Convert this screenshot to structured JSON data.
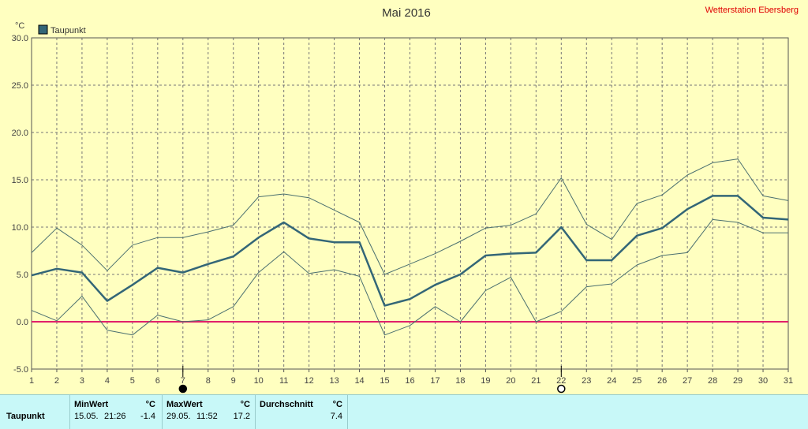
{
  "title": "Mai 2016",
  "station": "Wetterstation Ebersberg",
  "unit_label": "°C",
  "colors": {
    "main": "#336677",
    "minmax": "#4a6f6f",
    "zero": "#e0206a",
    "grid": "#777777",
    "bg": "#ffffc0",
    "stats_bg": "#c8f8f8"
  },
  "chart_data": {
    "type": "line",
    "ylim": [
      -5,
      30
    ],
    "y_ticks": [
      "-5.0",
      "0.0",
      "5.0",
      "10.0",
      "15.0",
      "20.0",
      "25.0",
      "30.0"
    ],
    "x": [
      1,
      2,
      3,
      4,
      5,
      6,
      7,
      8,
      9,
      10,
      11,
      12,
      13,
      14,
      15,
      16,
      17,
      18,
      19,
      20,
      21,
      22,
      23,
      24,
      25,
      26,
      27,
      28,
      29,
      30,
      31
    ],
    "x_ticks": [
      "1",
      "2",
      "3",
      "4",
      "5",
      "6",
      "7",
      "8",
      "9",
      "10",
      "11",
      "12",
      "13",
      "14",
      "15",
      "16",
      "17",
      "18",
      "19",
      "20",
      "21",
      "22",
      "23",
      "24",
      "25",
      "26",
      "27",
      "28",
      "29",
      "30",
      "31"
    ],
    "legend": [
      "Taupunkt"
    ],
    "grid": true,
    "series": [
      {
        "name": "Taupunkt",
        "role": "mean",
        "values": [
          4.9,
          5.6,
          5.2,
          2.2,
          3.9,
          5.7,
          5.2,
          6.1,
          6.9,
          8.9,
          10.5,
          8.8,
          8.4,
          8.4,
          1.7,
          2.4,
          3.9,
          5.0,
          7.0,
          7.2,
          7.3,
          10.0,
          6.5,
          6.5,
          9.1,
          9.9,
          11.9,
          13.3,
          13.3,
          11.0,
          10.8
        ]
      },
      {
        "role": "max",
        "values": [
          7.3,
          9.9,
          8.1,
          5.4,
          8.1,
          8.9,
          8.9,
          9.5,
          10.2,
          13.2,
          13.5,
          13.1,
          11.8,
          10.5,
          5.0,
          6.1,
          7.2,
          8.5,
          9.9,
          10.2,
          11.4,
          15.2,
          10.3,
          8.7,
          12.5,
          13.4,
          15.5,
          16.8,
          17.2,
          13.3,
          12.8
        ]
      },
      {
        "role": "min",
        "values": [
          1.2,
          0.1,
          2.7,
          -0.9,
          -1.4,
          0.7,
          0.0,
          0.2,
          1.6,
          5.2,
          7.4,
          5.1,
          5.5,
          4.8,
          -1.4,
          -0.4,
          1.6,
          0.0,
          3.3,
          4.7,
          0.0,
          1.1,
          3.7,
          4.0,
          6.0,
          7.0,
          7.3,
          10.8,
          10.5,
          9.4,
          9.4
        ]
      }
    ],
    "reference_line": 0.0,
    "markers": [
      {
        "x": 7,
        "icon": "new-moon-icon"
      },
      {
        "x": 22,
        "icon": "full-moon-icon"
      }
    ]
  },
  "stats": {
    "row_label": "Taupunkt",
    "min": {
      "header": "MinWert",
      "unit": "°C",
      "date": "15.05.",
      "time": "21:26",
      "value": "-1.4"
    },
    "max": {
      "header": "MaxWert",
      "unit": "°C",
      "date": "29.05.",
      "time": "11:52",
      "value": "17.2"
    },
    "avg": {
      "header": "Durchschnitt",
      "unit": "°C",
      "value": "7.4"
    }
  }
}
